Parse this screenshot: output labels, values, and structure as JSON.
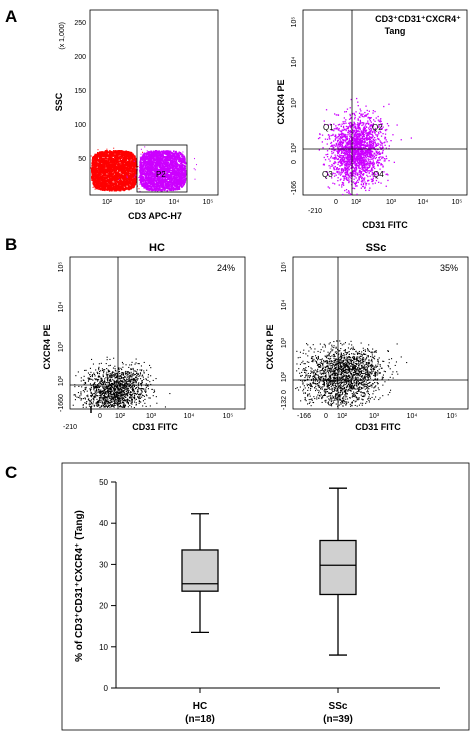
{
  "chart_data": [
    {
      "type": "scatter",
      "panel": "A",
      "xlabel": "CD3 APC-H7",
      "ylabel": "SSC",
      "x_ticks": [
        "10²",
        "10³",
        "10⁴",
        "10⁵"
      ],
      "y_ticks": [
        "50",
        "100",
        "150",
        "200",
        "250"
      ],
      "y_multiplier_label": "(x 1,000)",
      "gate_label": "P2",
      "series": [
        {
          "color": "#ff0000",
          "x_range": [
            1.3,
            2.8
          ],
          "y_range": [
            8,
            40
          ]
        },
        {
          "color": "#cc00ff",
          "x_range": [
            2.9,
            3.9
          ],
          "y_range": [
            8,
            40
          ]
        }
      ],
      "colors": {
        "cd3_negative": "#ff0000",
        "cd3_positive": "#cc00ff"
      }
    },
    {
      "type": "scatter",
      "panel": "A",
      "title": "CD3⁺CD31⁺CXCR4⁺\nTang",
      "title_lines": [
        "CD3⁺CD31⁺CXCR4⁺",
        "Tang"
      ],
      "xlabel": "CD31 FITC",
      "ylabel": "CXCR4 PE",
      "x_ticks": [
        "-210",
        "0",
        "10²",
        "10³",
        "10⁴",
        "10⁵"
      ],
      "y_ticks": [
        "-166",
        "0",
        "10²",
        "10³",
        "10⁴",
        "10⁵"
      ],
      "quadrants": [
        "Q1",
        "Q2",
        "Q3",
        "Q4"
      ],
      "colors": {
        "points": "#cc00ff"
      }
    },
    {
      "type": "scatter",
      "panel": "B",
      "title": "HC",
      "xlabel": "CD31 FITC",
      "ylabel": "CXCR4 PE",
      "x_ticks": [
        "-210",
        "0",
        "10²",
        "10³",
        "10⁴",
        "10⁵"
      ],
      "y_ticks": [
        "-166",
        "0",
        "10²",
        "10³",
        "10⁴",
        "10⁵"
      ],
      "annotation": "24%",
      "colors": {
        "points": "#000000"
      }
    },
    {
      "type": "scatter",
      "panel": "B",
      "title": "SSc",
      "xlabel": "CD31 FITC",
      "ylabel": "CXCR4 PE",
      "x_ticks": [
        "-166",
        "0",
        "10²",
        "10³",
        "10⁴",
        "10⁵"
      ],
      "y_ticks": [
        "-132",
        "0",
        "10²",
        "10³",
        "10⁴",
        "10⁵"
      ],
      "annotation": "35%",
      "colors": {
        "points": "#000000"
      }
    },
    {
      "type": "box",
      "panel": "C",
      "ylabel": "% of CD3⁺CD31⁺CXCR4⁺ (Tang)",
      "ylim": [
        0,
        50
      ],
      "y_ticks": [
        "0",
        "10",
        "20",
        "30",
        "40",
        "50"
      ],
      "categories": [
        "HC\n(n=18)",
        "SSc\n(n=39)"
      ],
      "category_lines": [
        [
          "HC",
          "(n=18)"
        ],
        [
          "SSc",
          "(n=39)"
        ]
      ],
      "boxes": [
        {
          "min": 13.5,
          "q1": 23.5,
          "median": 25.3,
          "q3": 33.5,
          "max": 42.3
        },
        {
          "min": 8.0,
          "q1": 22.7,
          "median": 29.8,
          "q3": 35.8,
          "max": 48.5
        }
      ],
      "colors": {
        "box_fill": "#d0d0d0",
        "line": "#000000"
      }
    }
  ],
  "panel_letters": [
    "A",
    "B",
    "C"
  ]
}
